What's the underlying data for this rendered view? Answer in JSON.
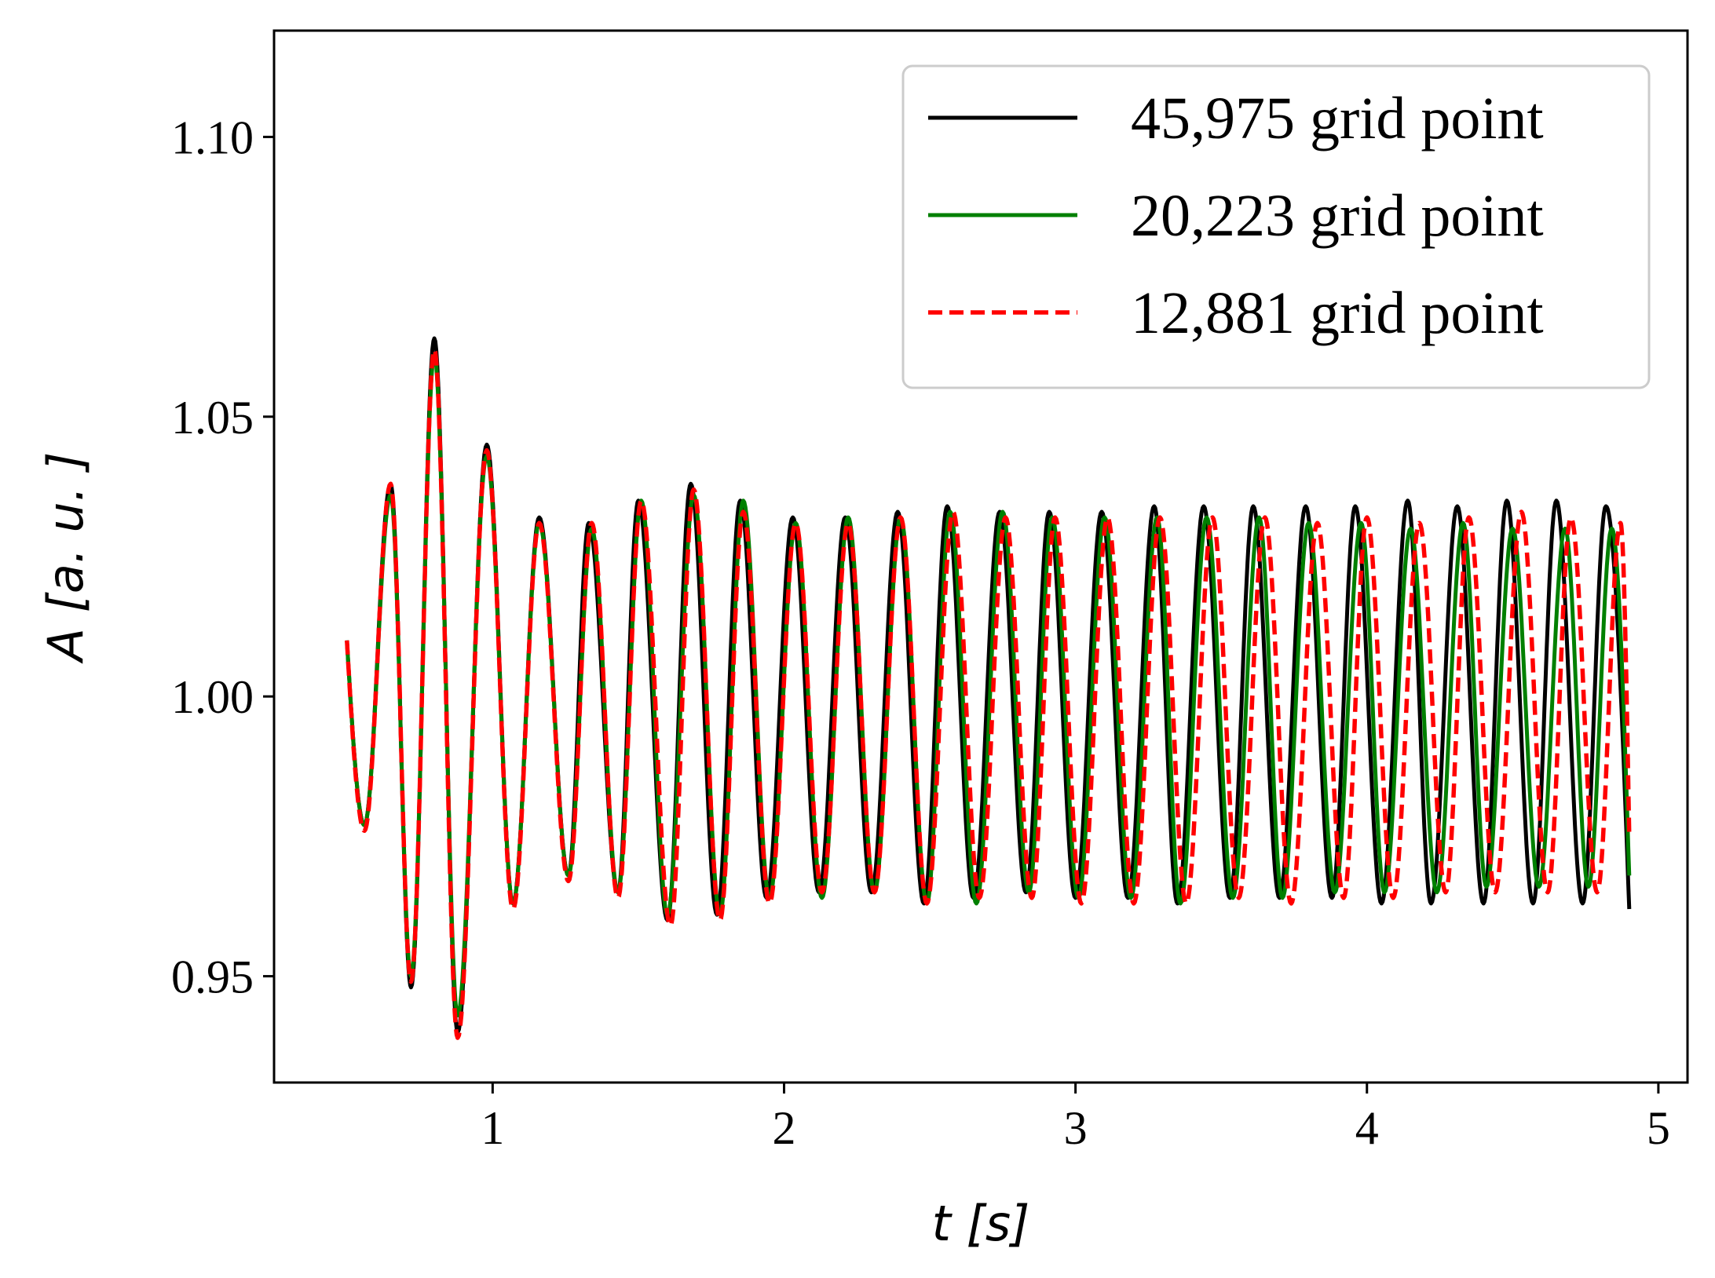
{
  "chart_data": {
    "type": "line",
    "xlabel": "t [s]",
    "ylabel": "A [a. u. ]",
    "xlim": [
      0.25,
      5.1
    ],
    "ylim": [
      0.931,
      1.119
    ],
    "xticks": [
      1,
      2,
      3,
      4,
      5
    ],
    "xtick_labels": [
      "1",
      "2",
      "3",
      "4",
      "5"
    ],
    "yticks": [
      0.95,
      1.0,
      1.05,
      1.1
    ],
    "ytick_labels": [
      "0.95",
      "1.00",
      "1.05",
      "1.10"
    ],
    "grid": false,
    "legend_position": "top-right",
    "series": [
      {
        "name": "45,975 grid point",
        "color": "#000000",
        "dash": "solid",
        "x_start": 0.5,
        "x_end": 4.9,
        "start_value": 1.01,
        "start_direction": "down",
        "extrema": [
          {
            "t": 0.56,
            "v": 0.977
          },
          {
            "t": 0.65,
            "v": 1.038
          },
          {
            "t": 0.72,
            "v": 0.948
          },
          {
            "t": 0.8,
            "v": 1.064
          },
          {
            "t": 0.88,
            "v": 0.94
          },
          {
            "t": 0.98,
            "v": 1.045
          },
          {
            "t": 1.07,
            "v": 0.963
          },
          {
            "t": 1.16,
            "v": 1.032
          },
          {
            "t": 1.26,
            "v": 0.968
          },
          {
            "t": 1.33,
            "v": 1.031
          },
          {
            "t": 1.43,
            "v": 0.965
          },
          {
            "t": 1.5,
            "v": 1.035
          },
          {
            "t": 1.6,
            "v": 0.96
          },
          {
            "t": 1.68,
            "v": 1.038
          },
          {
            "t": 1.77,
            "v": 0.961
          },
          {
            "t": 1.85,
            "v": 1.035
          },
          {
            "t": 1.94,
            "v": 0.964
          },
          {
            "t": 2.03,
            "v": 1.032
          },
          {
            "t": 2.12,
            "v": 0.965
          },
          {
            "t": 2.21,
            "v": 1.032
          },
          {
            "t": 2.3,
            "v": 0.965
          },
          {
            "t": 2.39,
            "v": 1.033
          },
          {
            "t": 2.48,
            "v": 0.963
          },
          {
            "t": 2.56,
            "v": 1.034
          },
          {
            "t": 2.65,
            "v": 0.964
          },
          {
            "t": 2.74,
            "v": 1.033
          },
          {
            "t": 2.83,
            "v": 0.965
          },
          {
            "t": 2.91,
            "v": 1.033
          },
          {
            "t": 3.0,
            "v": 0.964
          },
          {
            "t": 3.09,
            "v": 1.033
          },
          {
            "t": 3.18,
            "v": 0.964
          },
          {
            "t": 3.27,
            "v": 1.034
          },
          {
            "t": 3.35,
            "v": 0.963
          },
          {
            "t": 3.44,
            "v": 1.034
          },
          {
            "t": 3.53,
            "v": 0.964
          },
          {
            "t": 3.61,
            "v": 1.034
          },
          {
            "t": 3.7,
            "v": 0.964
          },
          {
            "t": 3.79,
            "v": 1.034
          },
          {
            "t": 3.88,
            "v": 0.964
          },
          {
            "t": 3.96,
            "v": 1.034
          },
          {
            "t": 4.05,
            "v": 0.963
          },
          {
            "t": 4.14,
            "v": 1.035
          },
          {
            "t": 4.22,
            "v": 0.963
          },
          {
            "t": 4.31,
            "v": 1.034
          },
          {
            "t": 4.4,
            "v": 0.963
          },
          {
            "t": 4.48,
            "v": 1.035
          },
          {
            "t": 4.57,
            "v": 0.963
          },
          {
            "t": 4.65,
            "v": 1.035
          },
          {
            "t": 4.74,
            "v": 0.963
          },
          {
            "t": 4.82,
            "v": 1.034
          }
        ],
        "end_value": 0.962
      },
      {
        "name": "20,223 grid point",
        "color": "#008000",
        "dash": "solid",
        "x_start": 0.5,
        "x_end": 4.9,
        "start_value": 1.01,
        "start_direction": "down",
        "extrema": [
          {
            "t": 0.56,
            "v": 0.977
          },
          {
            "t": 0.65,
            "v": 1.036
          },
          {
            "t": 0.72,
            "v": 0.95
          },
          {
            "t": 0.8,
            "v": 1.061
          },
          {
            "t": 0.88,
            "v": 0.943
          },
          {
            "t": 0.98,
            "v": 1.043
          },
          {
            "t": 1.07,
            "v": 0.963
          },
          {
            "t": 1.16,
            "v": 1.031
          },
          {
            "t": 1.26,
            "v": 0.968
          },
          {
            "t": 1.34,
            "v": 1.03
          },
          {
            "t": 1.43,
            "v": 0.965
          },
          {
            "t": 1.51,
            "v": 1.035
          },
          {
            "t": 1.6,
            "v": 0.961
          },
          {
            "t": 1.69,
            "v": 1.036
          },
          {
            "t": 1.78,
            "v": 0.961
          },
          {
            "t": 1.86,
            "v": 1.035
          },
          {
            "t": 1.95,
            "v": 0.964
          },
          {
            "t": 2.04,
            "v": 1.031
          },
          {
            "t": 2.13,
            "v": 0.964
          },
          {
            "t": 2.22,
            "v": 1.032
          },
          {
            "t": 2.31,
            "v": 0.965
          },
          {
            "t": 2.4,
            "v": 1.032
          },
          {
            "t": 2.49,
            "v": 0.963
          },
          {
            "t": 2.57,
            "v": 1.033
          },
          {
            "t": 2.66,
            "v": 0.963
          },
          {
            "t": 2.75,
            "v": 1.033
          },
          {
            "t": 2.84,
            "v": 0.965
          },
          {
            "t": 2.92,
            "v": 1.032
          },
          {
            "t": 3.01,
            "v": 0.964
          },
          {
            "t": 3.1,
            "v": 1.032
          },
          {
            "t": 3.19,
            "v": 0.964
          },
          {
            "t": 3.28,
            "v": 1.032
          },
          {
            "t": 3.36,
            "v": 0.963
          },
          {
            "t": 3.45,
            "v": 1.032
          },
          {
            "t": 3.54,
            "v": 0.964
          },
          {
            "t": 3.63,
            "v": 1.032
          },
          {
            "t": 3.71,
            "v": 0.964
          },
          {
            "t": 3.8,
            "v": 1.031
          },
          {
            "t": 3.89,
            "v": 0.965
          },
          {
            "t": 3.98,
            "v": 1.031
          },
          {
            "t": 4.06,
            "v": 0.965
          },
          {
            "t": 4.15,
            "v": 1.03
          },
          {
            "t": 4.24,
            "v": 0.965
          },
          {
            "t": 4.33,
            "v": 1.031
          },
          {
            "t": 4.41,
            "v": 0.966
          },
          {
            "t": 4.5,
            "v": 1.03
          },
          {
            "t": 4.59,
            "v": 0.966
          },
          {
            "t": 4.68,
            "v": 1.03
          },
          {
            "t": 4.76,
            "v": 0.966
          },
          {
            "t": 4.84,
            "v": 1.03
          }
        ],
        "end_value": 0.968
      },
      {
        "name": "12,881 grid point",
        "color": "#ff0000",
        "dash": "dashed",
        "x_start": 0.5,
        "x_end": 4.9,
        "start_value": 1.01,
        "start_direction": "down",
        "extrema": [
          {
            "t": 0.56,
            "v": 0.976
          },
          {
            "t": 0.65,
            "v": 1.038
          },
          {
            "t": 0.72,
            "v": 0.949
          },
          {
            "t": 0.8,
            "v": 1.062
          },
          {
            "t": 0.88,
            "v": 0.939
          },
          {
            "t": 0.98,
            "v": 1.044
          },
          {
            "t": 1.07,
            "v": 0.962
          },
          {
            "t": 1.16,
            "v": 1.031
          },
          {
            "t": 1.26,
            "v": 0.967
          },
          {
            "t": 1.34,
            "v": 1.031
          },
          {
            "t": 1.43,
            "v": 0.964
          },
          {
            "t": 1.51,
            "v": 1.035
          },
          {
            "t": 1.61,
            "v": 0.959
          },
          {
            "t": 1.69,
            "v": 1.037
          },
          {
            "t": 1.78,
            "v": 0.96
          },
          {
            "t": 1.86,
            "v": 1.033
          },
          {
            "t": 1.95,
            "v": 0.963
          },
          {
            "t": 2.04,
            "v": 1.031
          },
          {
            "t": 2.13,
            "v": 0.965
          },
          {
            "t": 2.22,
            "v": 1.031
          },
          {
            "t": 2.31,
            "v": 0.965
          },
          {
            "t": 2.4,
            "v": 1.032
          },
          {
            "t": 2.49,
            "v": 0.963
          },
          {
            "t": 2.58,
            "v": 1.033
          },
          {
            "t": 2.67,
            "v": 0.964
          },
          {
            "t": 2.76,
            "v": 1.032
          },
          {
            "t": 2.85,
            "v": 0.964
          },
          {
            "t": 2.93,
            "v": 1.032
          },
          {
            "t": 3.02,
            "v": 0.963
          },
          {
            "t": 3.11,
            "v": 1.032
          },
          {
            "t": 3.2,
            "v": 0.963
          },
          {
            "t": 3.29,
            "v": 1.032
          },
          {
            "t": 3.38,
            "v": 0.963
          },
          {
            "t": 3.47,
            "v": 1.032
          },
          {
            "t": 3.56,
            "v": 0.964
          },
          {
            "t": 3.65,
            "v": 1.032
          },
          {
            "t": 3.74,
            "v": 0.963
          },
          {
            "t": 3.83,
            "v": 1.031
          },
          {
            "t": 3.92,
            "v": 0.964
          },
          {
            "t": 4.0,
            "v": 1.032
          },
          {
            "t": 4.09,
            "v": 0.964
          },
          {
            "t": 4.18,
            "v": 1.031
          },
          {
            "t": 4.27,
            "v": 0.965
          },
          {
            "t": 4.35,
            "v": 1.032
          },
          {
            "t": 4.44,
            "v": 0.965
          },
          {
            "t": 4.53,
            "v": 1.033
          },
          {
            "t": 4.62,
            "v": 0.965
          },
          {
            "t": 4.7,
            "v": 1.032
          },
          {
            "t": 4.79,
            "v": 0.965
          },
          {
            "t": 4.87,
            "v": 1.031
          }
        ],
        "end_value": 0.975
      }
    ]
  }
}
